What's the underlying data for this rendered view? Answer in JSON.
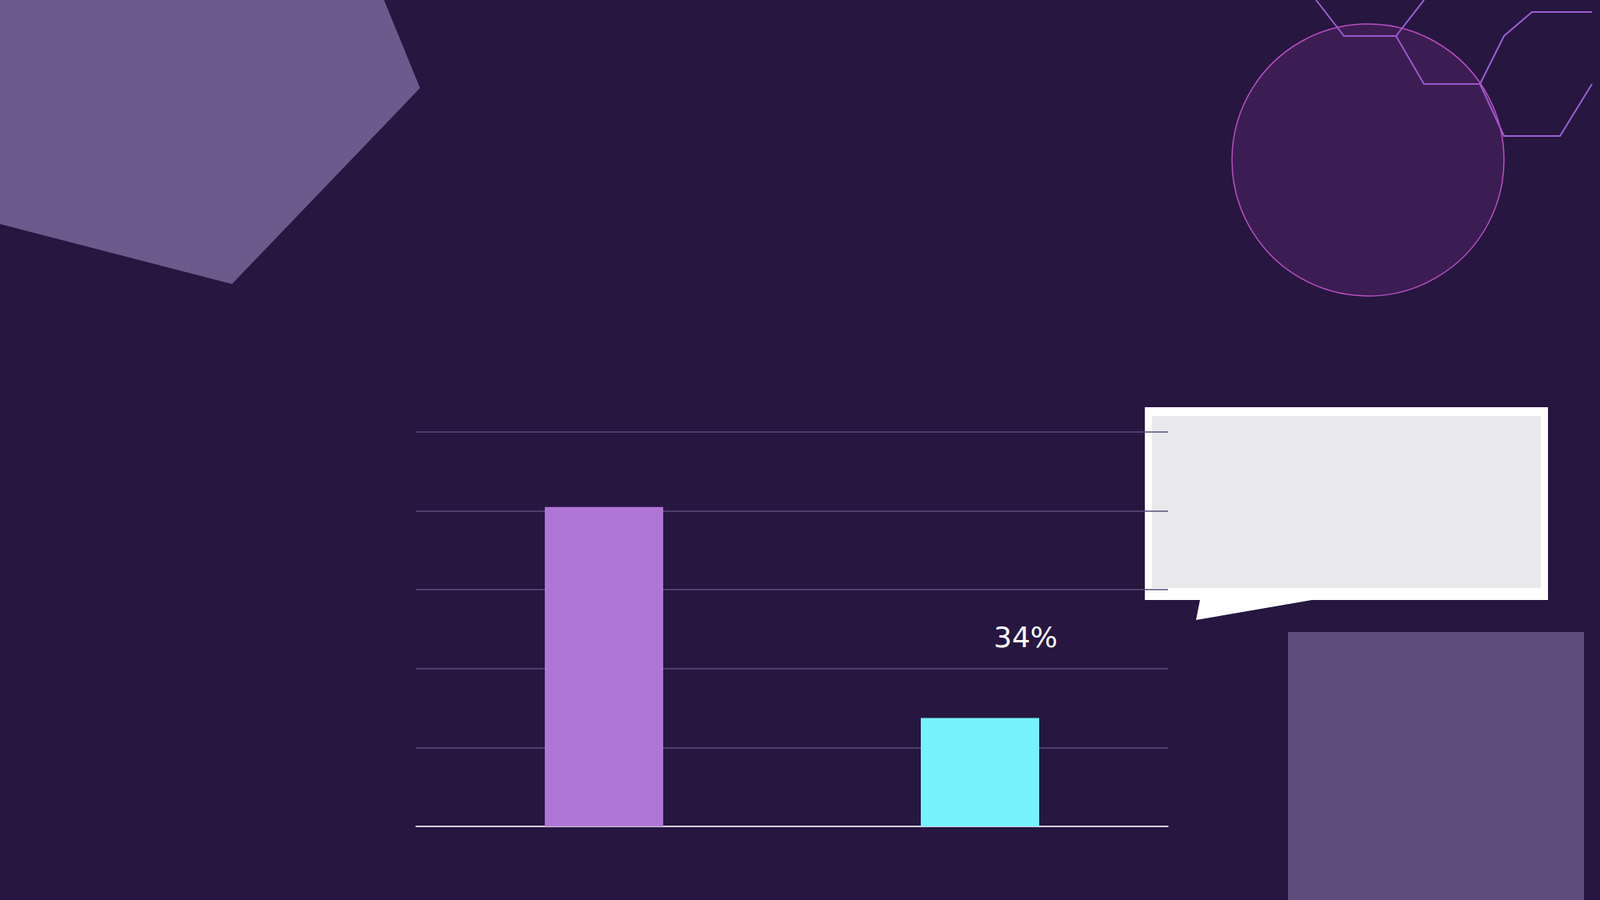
{
  "chart_data": {
    "type": "bar",
    "categories": [
      null,
      null
    ],
    "values": [
      81,
      27.5
    ],
    "colors": [
      "#b076d6",
      "#76f2fc"
    ],
    "ylim": [
      0,
      100
    ],
    "yticks": [
      0,
      20,
      40,
      60,
      80,
      100
    ],
    "grid": true,
    "tick_labels": false,
    "annotation": "34%"
  }
}
